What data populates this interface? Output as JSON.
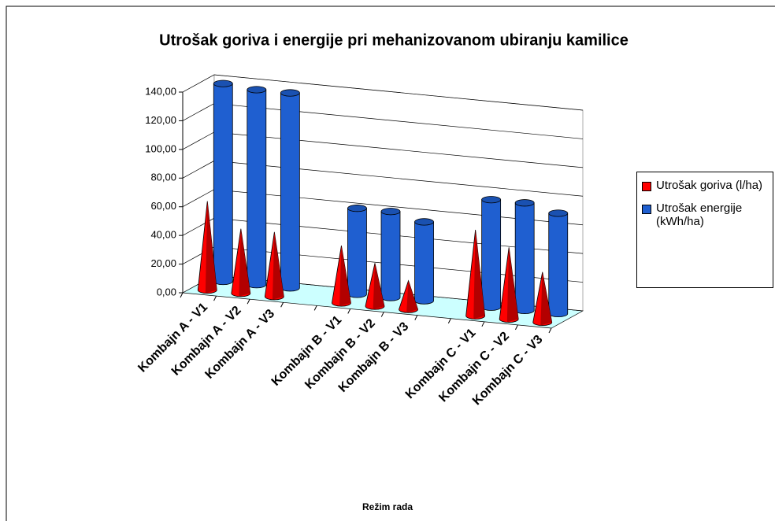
{
  "chart_data": {
    "type": "bar3d",
    "title": "Utrošak goriva i energije pri mehanizovanom ubiranju kamilice",
    "x_label": "Režim rada",
    "categories": [
      "Kombajn A - V1",
      "Kombajn A - V2",
      "Kombajn A - V3",
      null,
      "Kombajn B - V1",
      "Kombajn B - V2",
      "Kombajn B - V3",
      null,
      "Kombajn C - V1",
      "Kombajn C - V2",
      "Kombajn C - V3"
    ],
    "series": [
      {
        "name": "Utrošak goriva (l/ha)",
        "color": "#ff0000",
        "shape": "cone",
        "values": [
          62,
          45,
          45,
          null,
          40,
          30,
          20,
          null,
          60,
          50,
          35
        ]
      },
      {
        "name": "Utrošak energije (kWh/ha)",
        "color": "#1f5fd0",
        "shape": "cylinder",
        "values": [
          138,
          136,
          136,
          null,
          60,
          60,
          55,
          null,
          75,
          75,
          70
        ]
      }
    ],
    "ylim": [
      0,
      140
    ],
    "yticks": [
      {
        "value": 0,
        "label": "0,00"
      },
      {
        "value": 20,
        "label": "20,00"
      },
      {
        "value": 40,
        "label": "40,00"
      },
      {
        "value": 60,
        "label": "60,00"
      },
      {
        "value": 80,
        "label": "80,00"
      },
      {
        "value": 100,
        "label": "100,00"
      },
      {
        "value": 120,
        "label": "120,00"
      },
      {
        "value": 140,
        "label": "140,00"
      }
    ],
    "grid": true,
    "legend": "right"
  }
}
